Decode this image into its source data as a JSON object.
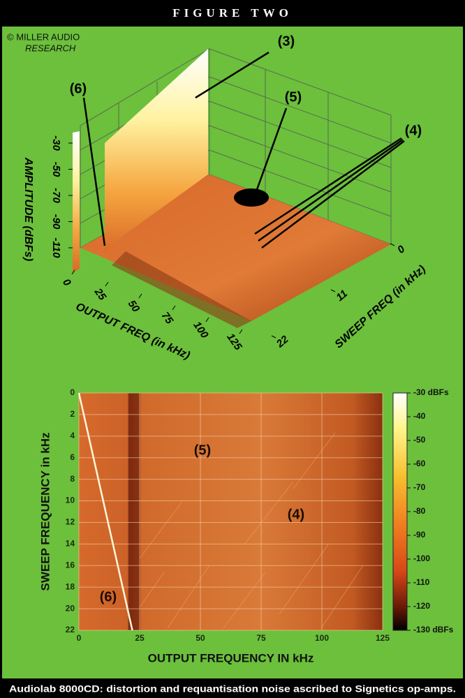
{
  "header": {
    "title": "FIGURE TWO",
    "credit": [
      "© MILLER AUDIO",
      "RESEARCH"
    ]
  },
  "chart_data": [
    {
      "type": "surface3d",
      "ylabel": "AMPLITUDE (dBFs)",
      "xlabel": "OUTPUT FREQ (in kHz)",
      "zlabel": "SWEEP FREQ (in kHz)",
      "yticks": [
        -30,
        -50,
        -70,
        -90,
        -110
      ],
      "xlim": [
        0,
        125
      ],
      "xticks": [
        0,
        25,
        50,
        75,
        100,
        125
      ],
      "zlim": [
        0,
        22
      ],
      "zticks": [
        0,
        11,
        22
      ],
      "annotations": [
        "(3)",
        "(5)",
        "(4)",
        "(6)"
      ]
    },
    {
      "type": "heatmap",
      "xlabel": "OUTPUT FREQUENCY IN kHz",
      "ylabel": "SWEEP FREQUENCY in kHz",
      "xlim": [
        0,
        125
      ],
      "xticks": [
        0,
        25,
        50,
        75,
        100,
        125
      ],
      "ylim": [
        22,
        0
      ],
      "yticks": [
        0,
        2,
        4,
        6,
        8,
        10,
        12,
        14,
        16,
        18,
        20,
        22
      ],
      "clim": [
        -130,
        -30
      ],
      "cticks": [
        {
          "value": -30,
          "label": "-30 dBFs"
        },
        -40,
        -50,
        -60,
        -70,
        -80,
        -90,
        -100,
        -110,
        -120,
        {
          "value": -130,
          "label": "-130 dBFs"
        }
      ],
      "series": [
        {
          "x": [
            0,
            22
          ],
          "values": [
            0,
            22
          ],
          "color": "#fff6d8"
        }
      ],
      "grid": true,
      "annotations": [
        "(5)",
        "(4)",
        "(6)"
      ]
    }
  ],
  "caption": "Audiolab 8000CD: distortion and requantisation noise ascribed to Signetics op-amps."
}
